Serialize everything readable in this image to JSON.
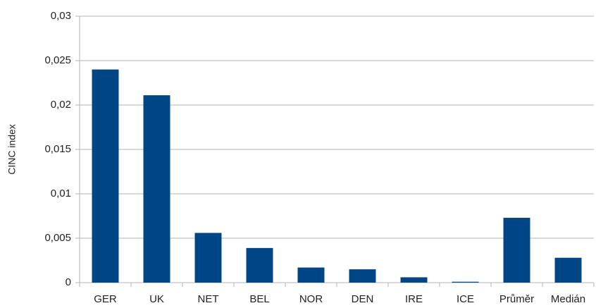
{
  "chart_data": {
    "type": "bar",
    "y_label": "CINC index",
    "categories": [
      "GER",
      "UK",
      "NET",
      "BEL",
      "NOR",
      "DEN",
      "IRE",
      "ICE",
      "Průměr",
      "Medián"
    ],
    "values": [
      0.024,
      0.0211,
      0.0056,
      0.0039,
      0.0017,
      0.0015,
      0.0006,
      0.0001,
      0.0073,
      0.0028
    ],
    "color": "#004586",
    "ylim": [
      0,
      0.03
    ],
    "yticks": [
      0,
      {
        "value": 0.005,
        "label": "0,005"
      },
      {
        "value": 0.01,
        "label": "0,01"
      },
      {
        "value": 0.015,
        "label": "0,015"
      },
      {
        "value": 0.02,
        "label": "0,02"
      },
      {
        "value": 0.025,
        "label": "0,025"
      },
      {
        "value": 0.03,
        "label": "0,03"
      }
    ],
    "grid": true
  }
}
